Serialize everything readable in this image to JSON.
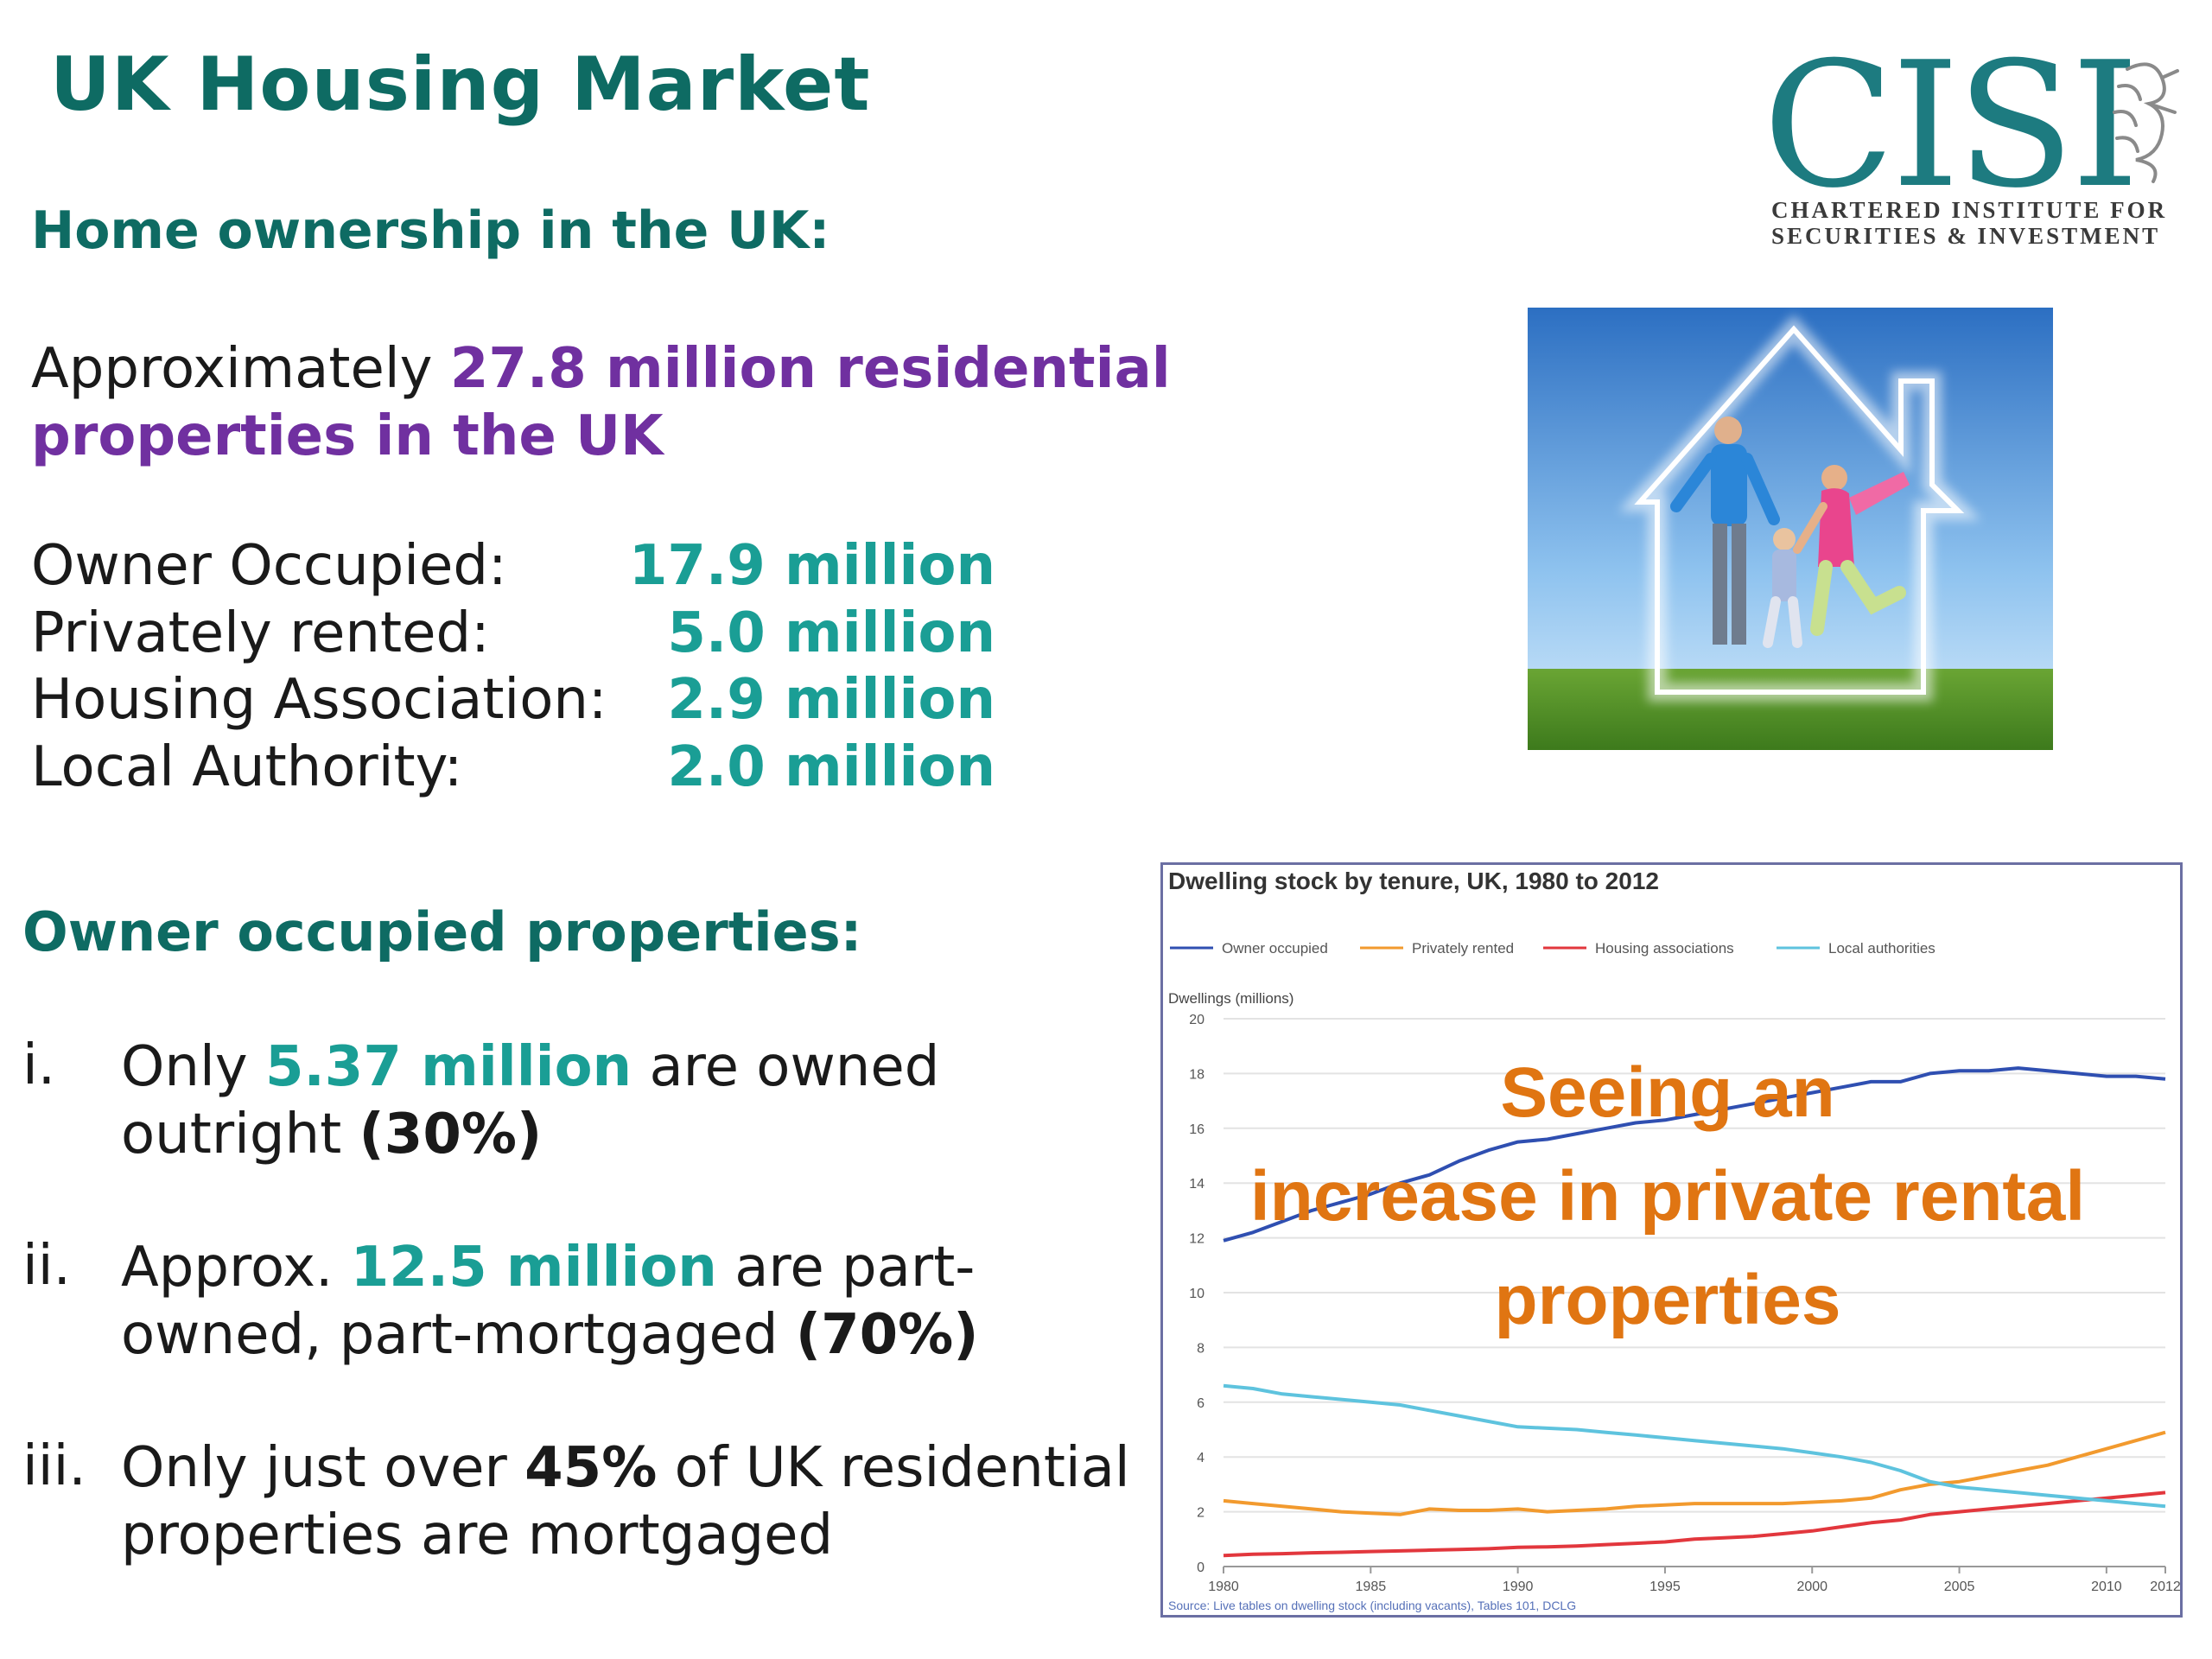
{
  "title": "UK Housing Market",
  "logo": {
    "word": "CISI",
    "line1": "CHARTERED INSTITUTE FOR",
    "line2": "SECURITIES & INVESTMENT",
    "icon": "griffin-icon"
  },
  "ownership": {
    "heading": "Home ownership in the UK:",
    "intro_pre": "Approximately ",
    "intro_highlight": "27.8 million residential properties in the UK",
    "tenures": [
      {
        "label": "Owner Occupied:",
        "value": "17.9 million"
      },
      {
        "label": "Privately rented:",
        "value": "5.0 million"
      },
      {
        "label": "Housing Association:",
        "value": "2.9 million"
      },
      {
        "label": "Local Authority:",
        "value": "2.0 million"
      }
    ]
  },
  "owner_occupied": {
    "heading": "Owner occupied properties:",
    "items": [
      {
        "num": "i.",
        "pre": "Only ",
        "highlight": "5.37 million",
        "mid": " are owned outright ",
        "bold": "(30%)",
        "post": ""
      },
      {
        "num": "ii.",
        "pre": "Approx. ",
        "highlight": "12.5 million",
        "mid": " are part-owned, part-mortgaged ",
        "bold": "(70%)",
        "post": ""
      },
      {
        "num": "iii.",
        "pre": "Only just over ",
        "highlight": "",
        "mid": "",
        "bold": "45%",
        "post": " of UK residential properties are mortgaged"
      }
    ]
  },
  "photo": {
    "icon": "family-house-photo"
  },
  "callout": [
    "Seeing an",
    "increase in private rental",
    "properties"
  ],
  "colors": {
    "teal_dark": "#0e6b63",
    "teal": "#1a9e95",
    "purple": "#7030a0",
    "orange": "#e07512",
    "owner": "#2f4fb1",
    "private": "#f29a2e",
    "housing": "#e2373d",
    "local": "#5ec3de"
  },
  "chart_data": {
    "type": "line",
    "title": "Dwelling stock by tenure, UK, 1980 to 2012",
    "ylabel": "Dwellings (millions)",
    "xlabel": "",
    "source": "Source: Live tables on dwelling stock (including vacants), Tables 101, DCLG",
    "x": [
      1980,
      1981,
      1982,
      1983,
      1984,
      1985,
      1986,
      1987,
      1988,
      1989,
      1990,
      1991,
      1992,
      1993,
      1994,
      1995,
      1996,
      1997,
      1998,
      1999,
      2000,
      2001,
      2002,
      2003,
      2004,
      2005,
      2006,
      2007,
      2008,
      2009,
      2010,
      2011,
      2012
    ],
    "xticks": [
      1980,
      1985,
      1990,
      1995,
      2000,
      2005,
      2010,
      2012
    ],
    "yticks": [
      0,
      2,
      4,
      6,
      8,
      10,
      12,
      14,
      16,
      18,
      20
    ],
    "xlim": [
      1980,
      2012
    ],
    "ylim": [
      0,
      20
    ],
    "legend_position": "top",
    "grid": true,
    "series": [
      {
        "name": "Owner occupied",
        "color": "#2f4fb1",
        "values": [
          11.9,
          12.2,
          12.6,
          13.0,
          13.3,
          13.6,
          14.0,
          14.3,
          14.8,
          15.2,
          15.5,
          15.6,
          15.8,
          16.0,
          16.2,
          16.3,
          16.5,
          16.7,
          16.9,
          17.1,
          17.3,
          17.5,
          17.7,
          17.7,
          18.0,
          18.1,
          18.1,
          18.2,
          18.1,
          18.0,
          17.9,
          17.9,
          17.8
        ]
      },
      {
        "name": "Privately rented",
        "color": "#f29a2e",
        "values": [
          2.4,
          2.3,
          2.2,
          2.1,
          2.0,
          1.95,
          1.9,
          2.1,
          2.05,
          2.05,
          2.1,
          2.0,
          2.05,
          2.1,
          2.2,
          2.25,
          2.3,
          2.3,
          2.3,
          2.3,
          2.35,
          2.4,
          2.5,
          2.8,
          3.0,
          3.1,
          3.3,
          3.5,
          3.7,
          4.0,
          4.3,
          4.6,
          4.9
        ]
      },
      {
        "name": "Housing associations",
        "color": "#e2373d",
        "values": [
          0.4,
          0.45,
          0.47,
          0.5,
          0.52,
          0.55,
          0.57,
          0.6,
          0.62,
          0.65,
          0.7,
          0.72,
          0.75,
          0.8,
          0.85,
          0.9,
          1.0,
          1.05,
          1.1,
          1.2,
          1.3,
          1.45,
          1.6,
          1.7,
          1.9,
          2.0,
          2.1,
          2.2,
          2.3,
          2.4,
          2.5,
          2.6,
          2.7
        ]
      },
      {
        "name": "Local authorities",
        "color": "#5ec3de",
        "values": [
          6.6,
          6.5,
          6.3,
          6.2,
          6.1,
          6.0,
          5.9,
          5.7,
          5.5,
          5.3,
          5.1,
          5.05,
          5.0,
          4.9,
          4.8,
          4.7,
          4.6,
          4.5,
          4.4,
          4.3,
          4.15,
          4.0,
          3.8,
          3.5,
          3.1,
          2.9,
          2.8,
          2.7,
          2.6,
          2.5,
          2.4,
          2.3,
          2.2
        ]
      }
    ]
  }
}
